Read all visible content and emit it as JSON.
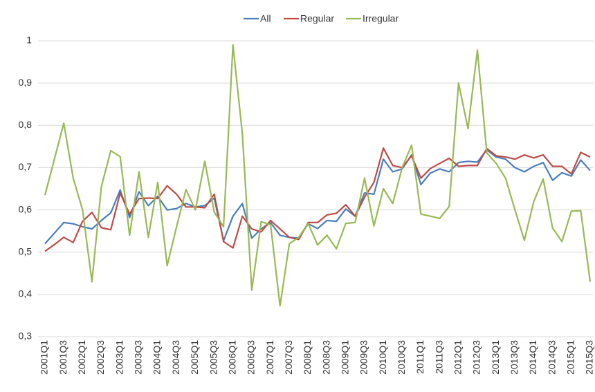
{
  "chart_data": {
    "type": "line",
    "categories": [
      "2001Q1",
      null,
      "2001Q3",
      null,
      "2002Q1",
      null,
      "2002Q3",
      null,
      "2003Q1",
      null,
      "2003Q3",
      null,
      "2004Q1",
      null,
      "2004Q3",
      null,
      "2005Q1",
      null,
      "2005Q3",
      null,
      "2006Q1",
      null,
      "2006Q3",
      null,
      "2007Q1",
      null,
      "2007Q3",
      null,
      "2008Q1",
      null,
      "2008Q3",
      null,
      "2009Q1",
      null,
      "2009Q3",
      null,
      "2010Q1",
      null,
      "2010Q3",
      null,
      "2011Q1",
      null,
      "2011Q3",
      null,
      "2012Q1",
      null,
      "2012Q3",
      null,
      "2013Q1",
      null,
      "2013Q3",
      null,
      "2014Q1",
      null,
      "2014Q3",
      null,
      "2015Q1",
      null,
      "2015Q3"
    ],
    "series": [
      {
        "name": "All",
        "color": "#4a7ebb",
        "values": [
          0.52,
          0.545,
          0.57,
          0.567,
          0.56,
          0.555,
          0.575,
          0.593,
          0.647,
          0.582,
          0.643,
          0.61,
          0.632,
          0.6,
          0.603,
          0.615,
          0.607,
          0.61,
          0.628,
          0.527,
          0.585,
          0.615,
          0.533,
          0.555,
          0.57,
          0.54,
          0.535,
          0.533,
          0.567,
          0.556,
          0.575,
          0.573,
          0.602,
          0.585,
          0.64,
          0.637,
          0.72,
          0.69,
          0.697,
          0.73,
          0.66,
          0.687,
          0.697,
          0.69,
          0.712,
          0.715,
          0.713,
          0.742,
          0.725,
          0.72,
          0.7,
          0.69,
          0.703,
          0.712,
          0.67,
          0.688,
          0.68,
          0.718,
          0.693
        ]
      },
      {
        "name": "Regular",
        "color": "#be4b48",
        "values": [
          0.502,
          0.518,
          0.535,
          0.523,
          0.573,
          0.594,
          0.558,
          0.553,
          0.64,
          0.59,
          0.627,
          0.628,
          0.627,
          0.657,
          0.637,
          0.607,
          0.607,
          0.605,
          0.637,
          0.525,
          0.51,
          0.585,
          0.555,
          0.548,
          0.575,
          0.555,
          0.535,
          0.53,
          0.57,
          0.57,
          0.588,
          0.592,
          0.612,
          0.585,
          0.63,
          0.665,
          0.746,
          0.705,
          0.7,
          0.728,
          0.675,
          0.698,
          0.71,
          0.722,
          0.703,
          0.705,
          0.705,
          0.745,
          0.728,
          0.725,
          0.72,
          0.73,
          0.723,
          0.73,
          0.703,
          0.703,
          0.685,
          0.736,
          0.725
        ]
      },
      {
        "name": "Irregular",
        "color": "#98b954",
        "values": [
          0.635,
          0.72,
          0.805,
          0.675,
          0.6,
          0.43,
          0.655,
          0.74,
          0.726,
          0.54,
          0.69,
          0.535,
          0.665,
          0.468,
          0.56,
          0.648,
          0.6,
          0.715,
          0.595,
          0.56,
          0.99,
          0.78,
          0.41,
          0.572,
          0.565,
          0.373,
          0.52,
          0.535,
          0.568,
          0.517,
          0.54,
          0.508,
          0.568,
          0.57,
          0.675,
          0.562,
          0.65,
          0.615,
          0.7,
          0.753,
          0.59,
          0.585,
          0.58,
          0.608,
          0.9,
          0.792,
          0.978,
          0.735,
          0.71,
          0.675,
          0.6,
          0.528,
          0.62,
          0.673,
          0.557,
          0.525,
          0.597,
          0.598,
          0.43
        ]
      }
    ],
    "ylim": [
      0.3,
      1
    ],
    "yticks": [
      {
        "value": 0.3,
        "label": "0,3"
      },
      {
        "value": 0.4,
        "label": "0,4"
      },
      {
        "value": 0.5,
        "label": "0,5"
      },
      {
        "value": 0.6,
        "label": "0,6"
      },
      {
        "value": 0.7,
        "label": "0,7"
      },
      {
        "value": 0.8,
        "label": "0,8"
      },
      {
        "value": 0.9,
        "label": "0,9"
      },
      1
    ],
    "grid": true,
    "legend": "top"
  }
}
